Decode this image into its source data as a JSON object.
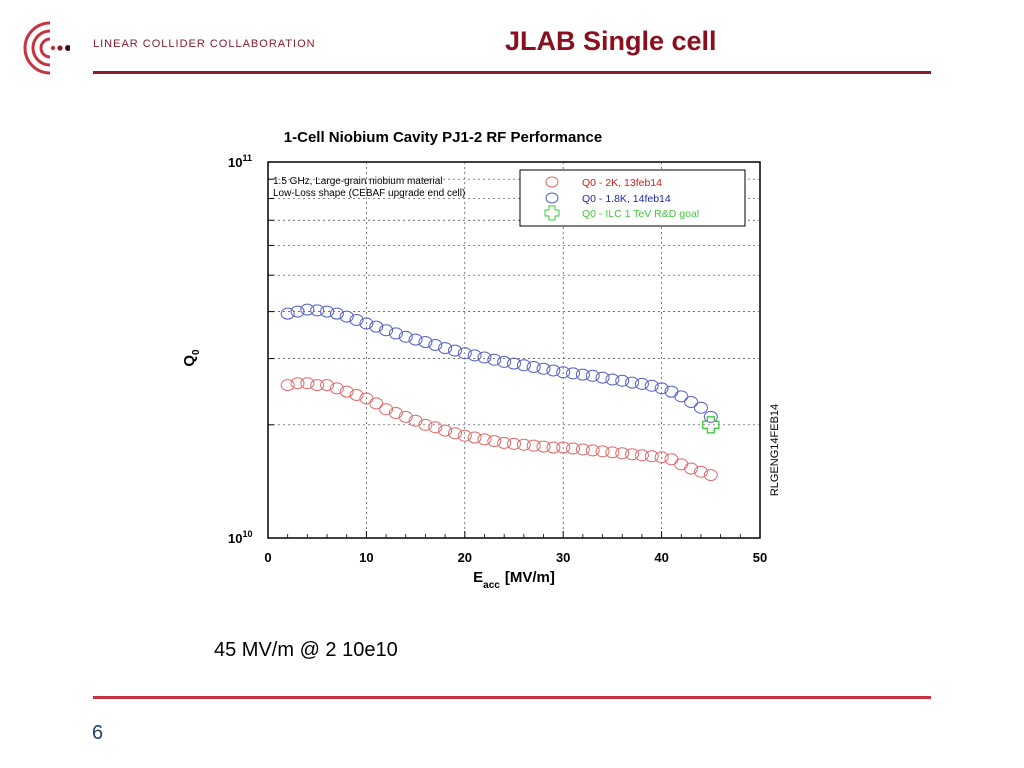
{
  "header": {
    "org_name": "LINEAR COLLIDER COLLABORATION",
    "slide_title": "JLAB Single cell",
    "brand_color": "#8a1c2b"
  },
  "caption": "45 MV/m @ 2 10e10",
  "page_number": "6",
  "chart_data": {
    "type": "scatter",
    "title": "1-Cell Niobium Cavity PJ1-2 RF Performance",
    "xlabel": "E",
    "xlabel_sub": "acc",
    "xlabel_unit": "[MV/m]",
    "ylabel": "Q",
    "ylabel_sub": "0",
    "xlim": [
      0,
      50
    ],
    "ylim": [
      10000000000.0,
      100000000000.0
    ],
    "yscale": "log",
    "x_ticks": [
      "0",
      "10",
      "20",
      "30",
      "40",
      "50"
    ],
    "y_tick_labels": [
      {
        "value": 100000000000.0,
        "base": "10",
        "exp": "11"
      },
      {
        "value": 10000000000.0,
        "base": "10",
        "exp": "10"
      }
    ],
    "grid": true,
    "annotation_lines": [
      "1.5 GHz, Large-grain niobium material",
      "Low-Loss shape (CEBAF upgrade end cell)"
    ],
    "side_label": "RLGENG14FEB14",
    "legend_position": "top-right",
    "series": [
      {
        "name": "Q0 - 2K, 13feb14",
        "color": "#e06a6a",
        "marker": "circle",
        "x": [
          2,
          3,
          4,
          5,
          6,
          7,
          8,
          9,
          10,
          11,
          12,
          13,
          14,
          15,
          16,
          17,
          18,
          19,
          20,
          21,
          22,
          23,
          24,
          25,
          26,
          27,
          28,
          29,
          30,
          31,
          32,
          33,
          34,
          35,
          36,
          37,
          38,
          39,
          40,
          41,
          42,
          43,
          44,
          45
        ],
        "y": [
          25500000000.0,
          25800000000.0,
          25800000000.0,
          25500000000.0,
          25500000000.0,
          25000000000.0,
          24500000000.0,
          24000000000.0,
          23500000000.0,
          22800000000.0,
          22000000000.0,
          21500000000.0,
          21000000000.0,
          20500000000.0,
          20000000000.0,
          19700000000.0,
          19300000000.0,
          19000000000.0,
          18700000000.0,
          18500000000.0,
          18300000000.0,
          18100000000.0,
          17900000000.0,
          17800000000.0,
          17700000000.0,
          17600000000.0,
          17500000000.0,
          17400000000.0,
          17400000000.0,
          17300000000.0,
          17200000000.0,
          17100000000.0,
          17000000000.0,
          16900000000.0,
          16800000000.0,
          16700000000.0,
          16600000000.0,
          16500000000.0,
          16400000000.0,
          16200000000.0,
          15700000000.0,
          15300000000.0,
          15000000000.0,
          14700000000.0
        ]
      },
      {
        "name": "Q0 - 1.8K, 14feb14",
        "color": "#5560c8",
        "marker": "circle",
        "x": [
          2,
          3,
          4,
          5,
          6,
          7,
          8,
          9,
          10,
          11,
          12,
          13,
          14,
          15,
          16,
          17,
          18,
          19,
          20,
          21,
          22,
          23,
          24,
          25,
          26,
          27,
          28,
          29,
          30,
          31,
          32,
          33,
          34,
          35,
          36,
          37,
          38,
          39,
          40,
          41,
          42,
          43,
          44,
          45
        ],
        "y": [
          39500000000.0,
          40000000000.0,
          40500000000.0,
          40300000000.0,
          40000000000.0,
          39500000000.0,
          38800000000.0,
          38000000000.0,
          37200000000.0,
          36500000000.0,
          35700000000.0,
          35000000000.0,
          34300000000.0,
          33700000000.0,
          33200000000.0,
          32600000000.0,
          32000000000.0,
          31500000000.0,
          31000000000.0,
          30600000000.0,
          30200000000.0,
          29800000000.0,
          29400000000.0,
          29100000000.0,
          28800000000.0,
          28500000000.0,
          28200000000.0,
          27900000000.0,
          27600000000.0,
          27400000000.0,
          27200000000.0,
          27000000000.0,
          26700000000.0,
          26400000000.0,
          26200000000.0,
          25900000000.0,
          25700000000.0,
          25400000000.0,
          25000000000.0,
          24500000000.0,
          23800000000.0,
          23000000000.0,
          22200000000.0,
          21000000000.0
        ]
      },
      {
        "name": "Q0 - ILC 1 TeV R&D goal",
        "color": "#3ec93e",
        "marker": "cross",
        "x": [
          45
        ],
        "y": [
          20000000000.0
        ]
      }
    ]
  }
}
